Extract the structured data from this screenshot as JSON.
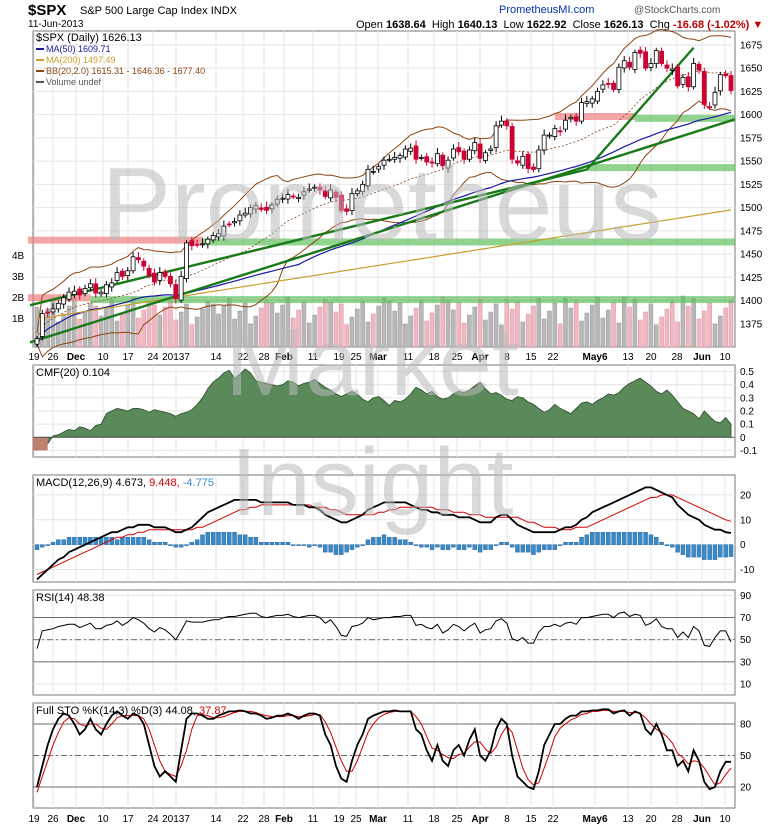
{
  "header": {
    "symbol": "$SPX",
    "description": "S&P 500 Large Cap Index",
    "exchange": "INDX",
    "date": "11-Jun-2013",
    "open_label": "Open",
    "open": "1638.64",
    "high_label": "High",
    "high": "1640.13",
    "low_label": "Low",
    "low": "1622.92",
    "close_label": "Close",
    "close": "1626.13",
    "chg_label": "Chg",
    "chg": "-16.68 (-1.02%)",
    "site": "PrometheusMI.com",
    "copyright": "@StockCharts.com",
    "chg_color": "#c00000"
  },
  "watermark": [
    "Prometheus",
    "Market",
    "Insight"
  ],
  "colors": {
    "up": "#000000",
    "down": "#cc0033",
    "ma50": "#1a1aa0",
    "ma200": "#c8a030",
    "bb": "#8b4513",
    "trend": "#1a7a1a",
    "cmf": "#5a8a5a",
    "cmf_neg": "#c08070",
    "macd": "#000000",
    "signal": "#d00000",
    "hist": "#3a8ac8",
    "volume_up": "#b8b8b8",
    "volume_down": "#f0b8c0",
    "band_red": "#f08080",
    "band_green": "#60c060"
  },
  "x_axis": [
    "19",
    "26",
    "Dec",
    "10",
    "17",
    "24",
    "20137",
    "14",
    "22",
    "28",
    "Feb",
    "11",
    "19",
    "25",
    "Mar",
    "11",
    "18",
    "25",
    "Apr",
    "8",
    "15",
    "22",
    "May6",
    "13",
    "20",
    "28",
    "Jun",
    "10"
  ],
  "chart_data": [
    {
      "panel": "price",
      "type": "candlestick",
      "title": "$SPX (Daily) 1626.13",
      "legend": [
        {
          "name": "MA(50) 1609.71",
          "color": "#1a1aa0"
        },
        {
          "name": "MA(200) 1497.49",
          "color": "#c8a030"
        },
        {
          "name": "BB(20,2.0) 1615.31 - 1646.36 - 1677.40",
          "color": "#8b4513"
        },
        {
          "name": "Volume undef",
          "color": "#555555"
        }
      ],
      "y_ticks": [
        1375,
        1400,
        1425,
        1450,
        1475,
        1500,
        1525,
        1550,
        1575,
        1600,
        1625,
        1650,
        1675
      ],
      "ylim": [
        1350,
        1690
      ],
      "volume_ticks": [
        "1B",
        "2B",
        "3B",
        "4B"
      ],
      "close": [
        1359,
        1386,
        1387,
        1391,
        1397,
        1403,
        1409,
        1410,
        1406,
        1413,
        1418,
        1408,
        1409,
        1417,
        1419,
        1430,
        1426,
        1432,
        1447,
        1444,
        1437,
        1427,
        1420,
        1430,
        1426,
        1418,
        1402,
        1426,
        1462,
        1459,
        1460,
        1461,
        1466,
        1470,
        1472,
        1480,
        1482,
        1485,
        1492,
        1494,
        1500,
        1502,
        1498,
        1497,
        1503,
        1509,
        1510,
        1514,
        1512,
        1511,
        1517,
        1520,
        1522,
        1519,
        1512,
        1519,
        1511,
        1497,
        1496,
        1515,
        1518,
        1525,
        1541,
        1539,
        1544,
        1551,
        1552,
        1554,
        1556,
        1563,
        1564,
        1552,
        1554,
        1549,
        1548,
        1558,
        1545,
        1551,
        1563,
        1560,
        1552,
        1562,
        1570,
        1553,
        1559,
        1563,
        1588,
        1593,
        1588,
        1552,
        1548,
        1555,
        1542,
        1541,
        1562,
        1578,
        1578,
        1585,
        1582,
        1594,
        1597,
        1593,
        1613,
        1614,
        1617,
        1625,
        1632,
        1633,
        1627,
        1651,
        1658,
        1651,
        1667,
        1666,
        1650,
        1655,
        1669,
        1655,
        1650,
        1649,
        1631,
        1640,
        1630,
        1655,
        1648,
        1611,
        1608,
        1624,
        1643,
        1642,
        1626
      ],
      "trendlines": [
        {
          "from": [
            "Nov 16",
            1355
          ],
          "to": [
            "Jun 11",
            1595
          ]
        },
        {
          "from": [
            "Nov 16",
            1395
          ],
          "to": [
            "Apr 18",
            1541
          ]
        },
        {
          "from": [
            "Apr 18",
            1541
          ],
          "to": [
            "May 21",
            1672
          ]
        }
      ],
      "bands": [
        {
          "kind": "resistance",
          "color": "red",
          "y": 1465,
          "range": [
            "Nov 16",
            "Jan 2"
          ]
        },
        {
          "kind": "support",
          "color": "green",
          "y": 1463,
          "range": [
            "Jan 2",
            "Jun 11"
          ]
        },
        {
          "kind": "resistance",
          "color": "red",
          "y": 1403,
          "range": [
            "Nov 16",
            "Dec 1"
          ]
        },
        {
          "kind": "support",
          "color": "green",
          "y": 1401,
          "range": [
            "Dec 1",
            "Jun 11"
          ]
        },
        {
          "kind": "resistance",
          "color": "red",
          "y": 1598,
          "range": [
            "Apr 10",
            "May 1"
          ]
        },
        {
          "kind": "support",
          "color": "green",
          "y": 1596,
          "range": [
            "May 1",
            "Jun 11"
          ]
        },
        {
          "kind": "support",
          "color": "green",
          "y": 1543,
          "range": [
            "Apr 18",
            "Jun 11"
          ]
        }
      ]
    },
    {
      "panel": "cmf",
      "type": "area",
      "title": "CMF(20) 0.104",
      "y_ticks": [
        -0.1,
        0.0,
        0.1,
        0.2,
        0.3,
        0.4,
        0.5
      ],
      "ylim": [
        -0.15,
        0.55
      ],
      "values": [
        -0.1,
        -0.08,
        -0.05,
        0.01,
        0.02,
        0.04,
        0.06,
        0.05,
        0.08,
        0.07,
        0.05,
        0.09,
        0.1,
        0.18,
        0.2,
        0.22,
        0.21,
        0.2,
        0.22,
        0.22,
        0.21,
        0.19,
        0.21,
        0.2,
        0.19,
        0.18,
        0.16,
        0.18,
        0.19,
        0.21,
        0.25,
        0.3,
        0.37,
        0.42,
        0.45,
        0.49,
        0.51,
        0.45,
        0.48,
        0.52,
        0.49,
        0.43,
        0.42,
        0.41,
        0.4,
        0.39,
        0.4,
        0.43,
        0.42,
        0.39,
        0.41,
        0.42,
        0.44,
        0.41,
        0.38,
        0.36,
        0.33,
        0.31,
        0.33,
        0.35,
        0.33,
        0.29,
        0.27,
        0.3,
        0.31,
        0.28,
        0.24,
        0.28,
        0.27,
        0.29,
        0.33,
        0.38,
        0.36,
        0.33,
        0.35,
        0.31,
        0.29,
        0.3,
        0.33,
        0.35,
        0.34,
        0.36,
        0.39,
        0.42,
        0.37,
        0.33,
        0.34,
        0.32,
        0.29,
        0.28,
        0.31,
        0.3,
        0.27,
        0.25,
        0.22,
        0.19,
        0.21,
        0.25,
        0.22,
        0.2,
        0.18,
        0.22,
        0.26,
        0.27,
        0.25,
        0.28,
        0.3,
        0.33,
        0.32,
        0.34,
        0.38,
        0.41,
        0.43,
        0.45,
        0.42,
        0.39,
        0.35,
        0.33,
        0.36,
        0.32,
        0.27,
        0.22,
        0.2,
        0.18,
        0.14,
        0.2,
        0.16,
        0.12,
        0.11,
        0.15,
        0.1
      ]
    },
    {
      "panel": "macd",
      "type": "line",
      "title": "MACD(12,26,9)",
      "title_values": [
        "4.673",
        "9.448",
        "-4.775"
      ],
      "y_ticks": [
        -10,
        0,
        10,
        20
      ],
      "ylim": [
        -15,
        28
      ],
      "macd": [
        -14,
        -12,
        -10,
        -8,
        -6,
        -5,
        -3,
        -2,
        -1,
        0,
        1,
        2,
        3,
        4,
        5,
        5,
        6,
        7,
        7,
        8,
        8,
        8,
        7,
        7,
        7,
        6,
        5,
        5,
        6,
        7,
        9,
        11,
        13,
        14,
        15,
        16,
        17,
        18,
        18,
        18,
        18,
        18,
        17,
        17,
        17,
        17,
        17,
        17,
        16,
        16,
        16,
        15,
        15,
        14,
        12,
        11,
        10,
        9,
        9,
        10,
        11,
        12,
        14,
        15,
        16,
        17,
        17,
        17,
        17,
        17,
        16,
        15,
        14,
        14,
        13,
        13,
        12,
        12,
        12,
        11,
        11,
        11,
        10,
        9,
        9,
        9,
        11,
        12,
        12,
        10,
        8,
        7,
        6,
        5,
        5,
        5,
        5,
        5,
        6,
        7,
        7,
        8,
        10,
        11,
        13,
        14,
        15,
        16,
        17,
        18,
        19,
        20,
        21,
        22,
        23,
        23,
        22,
        21,
        20,
        19,
        16,
        14,
        12,
        11,
        10,
        8,
        7,
        6,
        6,
        5,
        4.7
      ],
      "signal": [
        -12,
        -11,
        -10,
        -9,
        -8,
        -7,
        -6,
        -5,
        -4,
        -3,
        -2,
        -1,
        0,
        1,
        2,
        3,
        3,
        4,
        4,
        5,
        5,
        6,
        6,
        6,
        6,
        6,
        6,
        6,
        6,
        6,
        7,
        7,
        8,
        9,
        10,
        11,
        12,
        13,
        14,
        14,
        15,
        15,
        16,
        16,
        16,
        16,
        16,
        16,
        16,
        16,
        16,
        16,
        15,
        15,
        15,
        14,
        14,
        13,
        12,
        12,
        12,
        12,
        12,
        12,
        13,
        13,
        14,
        14,
        15,
        15,
        15,
        15,
        15,
        15,
        15,
        14,
        14,
        14,
        13,
        13,
        13,
        12,
        12,
        12,
        11,
        11,
        11,
        11,
        11,
        11,
        11,
        10,
        9,
        9,
        8,
        7,
        7,
        7,
        6,
        6,
        6,
        7,
        7,
        7,
        8,
        9,
        10,
        11,
        12,
        13,
        14,
        15,
        16,
        17,
        18,
        19,
        19,
        20,
        20,
        20,
        19,
        18,
        17,
        16,
        15,
        14,
        13,
        12,
        11,
        10,
        9.4
      ],
      "histogram": [
        -2,
        -1,
        0,
        1,
        2,
        2,
        3,
        3,
        3,
        3,
        3,
        3,
        3,
        3,
        3,
        2,
        3,
        3,
        3,
        3,
        3,
        2,
        1,
        1,
        1,
        0,
        -1,
        -1,
        0,
        1,
        2,
        4,
        5,
        5,
        5,
        5,
        5,
        5,
        4,
        4,
        3,
        3,
        1,
        1,
        1,
        1,
        1,
        1,
        0,
        0,
        0,
        -1,
        0,
        -1,
        -3,
        -3,
        -4,
        -4,
        -3,
        -2,
        -1,
        0,
        2,
        3,
        3,
        4,
        3,
        3,
        2,
        2,
        1,
        0,
        -1,
        -1,
        -2,
        -1,
        -2,
        -2,
        -1,
        -2,
        -2,
        -1,
        -2,
        -3,
        -2,
        -2,
        0,
        1,
        1,
        -1,
        -3,
        -3,
        -3,
        -4,
        -3,
        -2,
        -2,
        -2,
        0,
        1,
        1,
        1,
        3,
        4,
        5,
        5,
        5,
        5,
        5,
        5,
        5,
        5,
        5,
        5,
        5,
        4,
        3,
        1,
        0,
        -1,
        -3,
        -4,
        -5,
        -5,
        -5,
        -6,
        -6,
        -6,
        -5,
        -5,
        -4.8
      ]
    },
    {
      "panel": "rsi",
      "type": "line",
      "title": "RSI(14) 48.38",
      "y_ticks": [
        10,
        30,
        50,
        70,
        90
      ],
      "ylim": [
        0,
        95
      ],
      "values": [
        42,
        58,
        59,
        60,
        62,
        63,
        64,
        64,
        61,
        63,
        65,
        60,
        60,
        63,
        64,
        67,
        63,
        66,
        70,
        68,
        65,
        60,
        57,
        61,
        59,
        55,
        50,
        58,
        67,
        66,
        66,
        66,
        67,
        68,
        68,
        70,
        71,
        71,
        72,
        73,
        74,
        74,
        71,
        70,
        71,
        72,
        72,
        73,
        71,
        70,
        71,
        72,
        72,
        70,
        65,
        68,
        62,
        54,
        53,
        62,
        63,
        65,
        70,
        68,
        69,
        70,
        70,
        71,
        71,
        72,
        72,
        63,
        64,
        61,
        60,
        64,
        56,
        59,
        64,
        62,
        58,
        62,
        65,
        56,
        59,
        60,
        67,
        69,
        65,
        51,
        49,
        52,
        47,
        47,
        57,
        62,
        62,
        64,
        62,
        65,
        66,
        64,
        70,
        70,
        71,
        72,
        73,
        73,
        70,
        74,
        75,
        71,
        73,
        72,
        63,
        65,
        69,
        62,
        60,
        60,
        52,
        57,
        52,
        62,
        58,
        45,
        44,
        52,
        58,
        58,
        48
      ]
    },
    {
      "panel": "sto",
      "type": "line",
      "title": "Full STO %K(14,3) %D(3)",
      "title_values": [
        "44.08",
        "37.87"
      ],
      "y_ticks": [
        20,
        50,
        80
      ],
      "ylim": [
        0,
        100
      ],
      "k": [
        20,
        40,
        60,
        75,
        85,
        90,
        88,
        80,
        70,
        75,
        85,
        75,
        70,
        80,
        88,
        92,
        88,
        85,
        90,
        88,
        80,
        60,
        40,
        30,
        35,
        30,
        25,
        55,
        85,
        90,
        90,
        88,
        85,
        85,
        88,
        90,
        92,
        92,
        93,
        92,
        90,
        90,
        88,
        85,
        86,
        88,
        88,
        90,
        88,
        85,
        88,
        90,
        90,
        88,
        70,
        60,
        40,
        28,
        25,
        45,
        60,
        70,
        85,
        88,
        90,
        92,
        92,
        93,
        92,
        92,
        92,
        75,
        70,
        55,
        45,
        60,
        45,
        40,
        55,
        60,
        50,
        65,
        75,
        50,
        45,
        55,
        75,
        85,
        80,
        50,
        30,
        25,
        20,
        18,
        35,
        60,
        70,
        80,
        80,
        85,
        88,
        88,
        92,
        92,
        93,
        93,
        94,
        94,
        90,
        92,
        93,
        88,
        92,
        90,
        75,
        70,
        80,
        70,
        55,
        55,
        40,
        45,
        35,
        55,
        45,
        25,
        18,
        20,
        35,
        44,
        44
      ],
      "d": [
        15,
        30,
        45,
        60,
        72,
        82,
        86,
        85,
        80,
        78,
        80,
        80,
        76,
        75,
        80,
        86,
        88,
        88,
        88,
        88,
        85,
        75,
        60,
        45,
        35,
        32,
        30,
        40,
        55,
        75,
        88,
        89,
        88,
        86,
        86,
        87,
        89,
        91,
        92,
        92,
        92,
        91,
        89,
        88,
        87,
        87,
        87,
        88,
        88,
        87,
        87,
        88,
        89,
        89,
        82,
        72,
        58,
        45,
        35,
        35,
        45,
        58,
        72,
        80,
        86,
        89,
        91,
        92,
        92,
        92,
        92,
        87,
        80,
        68,
        57,
        55,
        51,
        48,
        47,
        51,
        52,
        58,
        63,
        63,
        56,
        52,
        58,
        70,
        78,
        72,
        55,
        38,
        27,
        22,
        24,
        38,
        52,
        68,
        76,
        80,
        84,
        86,
        89,
        90,
        92,
        92,
        93,
        93,
        92,
        92,
        92,
        91,
        91,
        90,
        86,
        80,
        75,
        72,
        68,
        62,
        52,
        48,
        42,
        45,
        44,
        38,
        30,
        22,
        24,
        32,
        37.87
      ]
    }
  ]
}
